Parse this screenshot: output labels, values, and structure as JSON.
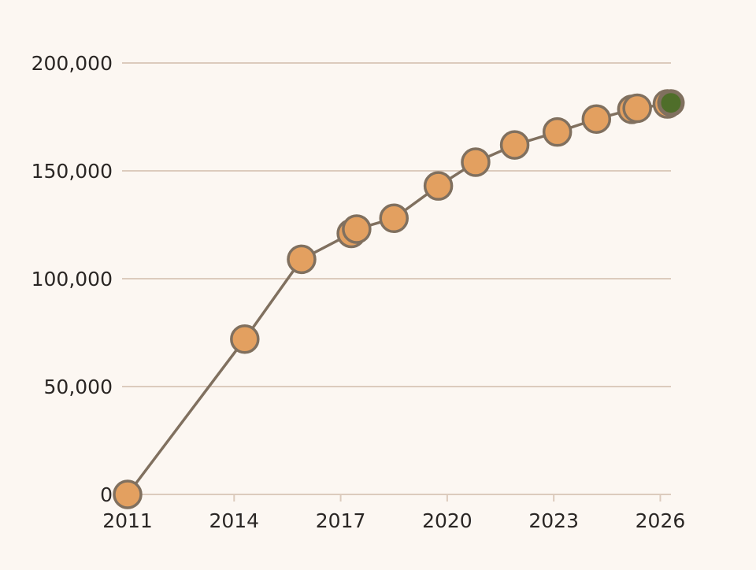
{
  "chart_data": {
    "type": "line",
    "title": "",
    "xlabel": "",
    "ylabel": "",
    "xlim": [
      2011,
      2026.3
    ],
    "ylim": [
      0,
      200000
    ],
    "grid": true,
    "x_ticks": [
      "2011",
      "2014",
      "2017",
      "2020",
      "2023",
      "2026"
    ],
    "y_ticks": [
      "0",
      "50,000",
      "100,000",
      "150,000",
      "200,000"
    ],
    "series": [
      {
        "x": [
          2011.0,
          2014.3,
          2015.9,
          2017.3,
          2017.45,
          2018.5,
          2019.75,
          2020.8,
          2021.9,
          2023.1,
          2024.2,
          2025.2,
          2025.35,
          2026.2,
          2026.3
        ],
        "y": [
          0,
          72000,
          109000,
          121000,
          123000,
          128000,
          143000,
          154000,
          162000,
          168000,
          174000,
          178500,
          179000,
          181000,
          181500
        ],
        "highlight_last": true
      }
    ],
    "colors": {
      "point_fill": "#e3a060",
      "line": "#80705f",
      "last_point_fill": "#4f6e2a",
      "grid": "#dccbbd",
      "background": "#fcf7f2"
    }
  }
}
